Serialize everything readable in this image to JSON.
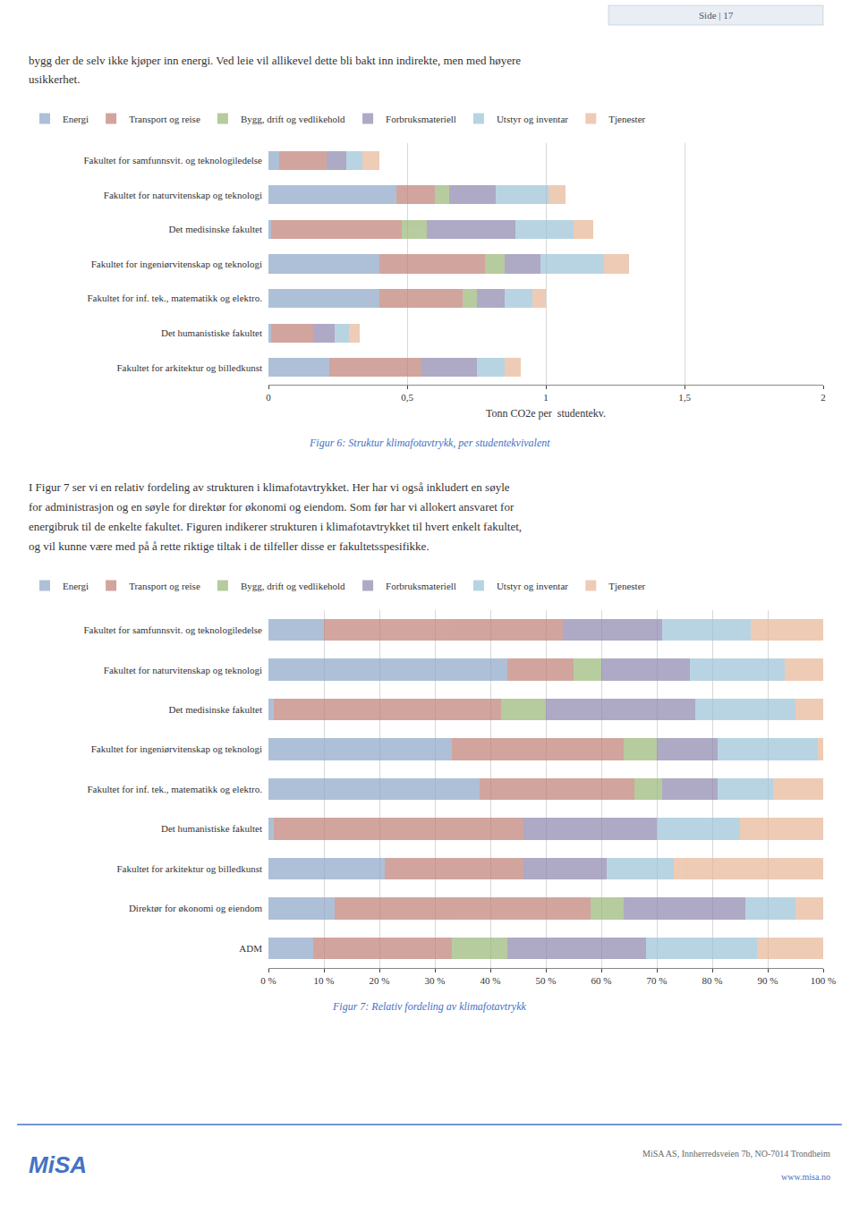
{
  "page_label": "Side | 17",
  "intro": [
    "bygg der de selv ikke kjøper inn energi. Ved leie vil allikevel dette bli bakt inn indirekte, men med høyere",
    "usikkerhet."
  ],
  "body": [
    "I Figur 7 ser vi en relativ fordeling av strukturen i klimafotavtrykket. Her har vi også inkludert en søyle",
    "for administrasjon og en søyle for direktør for økonomi og eiendom. Som før har vi allokert ansvaret for",
    "energibruk til de enkelte fakultet. Figuren indikerer strukturen i klimafotavtrykket til hvert enkelt fakultet,",
    "og vil kunne være med på å rette riktige tiltak i de tilfeller disse er fakultetsspesifikke."
  ],
  "footer": {
    "logo": "MiSA",
    "address": "MiSA AS, Innherredsveien 7b, NO-7014 Trondheim",
    "url": "www.misa.no"
  },
  "chart_data": [
    {
      "type": "bar",
      "orientation": "horizontal",
      "stacked": true,
      "title": "Figur 6: Struktur klimafotavtrykk, per studentekvivalent",
      "xlabel": "Tonn CO2e per  studentekv.",
      "xlim": [
        0,
        2
      ],
      "xticks": [
        0,
        {
          "value": 0.5,
          "label": "0,5"
        },
        1,
        {
          "value": 1.5,
          "label": "1,5"
        },
        2
      ],
      "grid": true,
      "legend": "top left",
      "categories": [
        "Fakultet for samfunnsvit. og teknologiledelse",
        "Fakultet for naturvitenskap og teknologi",
        "Det medisinske fakultet",
        "Fakultet for ingeniørvitenskap og teknologi",
        "Fakultet for inf. tek., matematikk og elektro.",
        "Det humanistiske fakultet",
        "Fakultet for arkitektur og billedkunst"
      ],
      "series": [
        {
          "name": "Energi",
          "color": "#8fa8c8",
          "values": [
            0.04,
            0.46,
            0.01,
            0.4,
            0.4,
            0.01,
            0.22
          ]
        },
        {
          "name": "Transport og reise",
          "color": "#c0837a",
          "values": [
            0.17,
            0.14,
            0.47,
            0.38,
            0.3,
            0.15,
            0.33
          ]
        },
        {
          "name": "Bygg, drift og vedlikehold",
          "color": "#9bb87a",
          "values": [
            0.0,
            0.05,
            0.09,
            0.07,
            0.05,
            0.0,
            0.0
          ]
        },
        {
          "name": "Forbruksmateriell",
          "color": "#9088b0",
          "values": [
            0.07,
            0.17,
            0.32,
            0.13,
            0.1,
            0.08,
            0.2
          ]
        },
        {
          "name": "Utstyr og inventar",
          "color": "#9dc4d8",
          "values": [
            0.06,
            0.19,
            0.21,
            0.23,
            0.1,
            0.05,
            0.1
          ]
        },
        {
          "name": "Tjenester",
          "color": "#e8b898",
          "values": [
            0.06,
            0.06,
            0.07,
            0.09,
            0.05,
            0.04,
            0.06
          ]
        }
      ]
    },
    {
      "type": "bar",
      "orientation": "horizontal",
      "stacked": true,
      "title": "Figur 7: Relativ fordeling av klimafotavtrykk",
      "xlim": [
        0,
        100
      ],
      "xticks": [
        {
          "value": 0,
          "label": "0 %"
        },
        {
          "value": 10,
          "label": "10 %"
        },
        {
          "value": 20,
          "label": "20 %"
        },
        {
          "value": 30,
          "label": "30 %"
        },
        {
          "value": 40,
          "label": "40 %"
        },
        {
          "value": 50,
          "label": "50 %"
        },
        {
          "value": 60,
          "label": "60 %"
        },
        {
          "value": 70,
          "label": "70 %"
        },
        {
          "value": 80,
          "label": "80 %"
        },
        {
          "value": 90,
          "label": "90 %"
        },
        {
          "value": 100,
          "label": "100 %"
        }
      ],
      "grid": true,
      "legend": "top left",
      "categories": [
        "Fakultet for samfunnsvit. og teknologiledelse",
        "Fakultet for naturvitenskap og teknologi",
        "Det medisinske fakultet",
        "Fakultet for ingeniørvitenskap og teknologi",
        "Fakultet for inf. tek., matematikk og elektro.",
        "Det humanistiske fakultet",
        "Fakultet for arkitektur og billedkunst",
        "Direktør for økonomi og eiendom",
        "ADM"
      ],
      "series": [
        {
          "name": "Energi",
          "color": "#8fa8c8",
          "values": [
            10,
            43,
            1,
            33,
            38,
            1,
            21,
            12,
            8
          ]
        },
        {
          "name": "Transport og reise",
          "color": "#c0837a",
          "values": [
            43,
            12,
            41,
            31,
            28,
            45,
            25,
            46,
            25
          ]
        },
        {
          "name": "Bygg, drift og vedlikehold",
          "color": "#9bb87a",
          "values": [
            0,
            5,
            8,
            6,
            5,
            0,
            0,
            6,
            10
          ]
        },
        {
          "name": "Forbruksmateriell",
          "color": "#9088b0",
          "values": [
            18,
            16,
            27,
            11,
            10,
            24,
            15,
            22,
            25
          ]
        },
        {
          "name": "Utstyr og inventar",
          "color": "#9dc4d8",
          "values": [
            16,
            17,
            18,
            18,
            10,
            15,
            12,
            9,
            20
          ]
        },
        {
          "name": "Tjenester",
          "color": "#e8b898",
          "values": [
            13,
            7,
            5,
            1,
            9,
            15,
            27,
            5,
            12
          ]
        }
      ]
    }
  ]
}
